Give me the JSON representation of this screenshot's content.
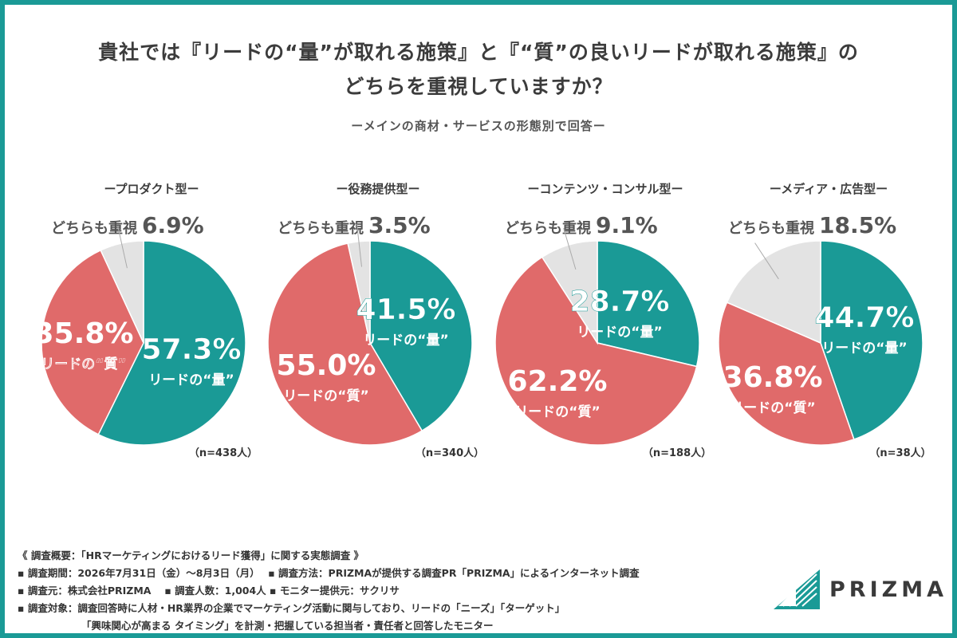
{
  "title_line1": "貴社では『リードの“量”が取れる施策』と『“質”の良いリードが取れる施策』の",
  "title_line2": "どちらを重視していますか？",
  "subtitle": "ーメインの商材・サービスの形態別で回答ー",
  "colors": {
    "quantity": "#1a9a96",
    "quality": "#e06a6a",
    "both": "#e3e3e3",
    "both_text": "#555555"
  },
  "chart_data": [
    {
      "type": "pie",
      "title": "ープロダクト型ー",
      "n_label": "（n=438人）",
      "series": [
        {
          "name": "リードの“量”",
          "value": 57.3,
          "label": "57.3%"
        },
        {
          "name": "リードの“質”",
          "value": 35.8,
          "label": "35.8%"
        },
        {
          "name": "どちらも重視",
          "value": 6.9,
          "label": "6.9%"
        }
      ]
    },
    {
      "type": "pie",
      "title": "ー役務提供型ー",
      "n_label": "（n=340人）",
      "series": [
        {
          "name": "リードの“量”",
          "value": 41.5,
          "label": "41.5%"
        },
        {
          "name": "リードの“質”",
          "value": 55.0,
          "label": "55.0%"
        },
        {
          "name": "どちらも重視",
          "value": 3.5,
          "label": "3.5%"
        }
      ]
    },
    {
      "type": "pie",
      "title": "ーコンテンツ・コンサル型ー",
      "n_label": "（n=188人）",
      "series": [
        {
          "name": "リードの“量”",
          "value": 28.7,
          "label": "28.7%"
        },
        {
          "name": "リードの“質”",
          "value": 62.2,
          "label": "62.2%"
        },
        {
          "name": "どちらも重視",
          "value": 9.1,
          "label": "9.1%"
        }
      ]
    },
    {
      "type": "pie",
      "title": "ーメディア・広告型ー",
      "n_label": "（n=38人）",
      "series": [
        {
          "name": "リードの“量”",
          "value": 44.7,
          "label": "44.7%"
        },
        {
          "name": "リードの“質”",
          "value": 36.8,
          "label": "36.8%"
        },
        {
          "name": "どちらも重視",
          "value": 18.5,
          "label": "18.5%"
        }
      ]
    }
  ],
  "footer": {
    "overview": "《 調査概要：「HRマーケティングにおけるリード獲得」に関する実態調査 》",
    "period": "▪ 調査期間：2026年7月31日（金）〜8月3日（月）",
    "method": "▪ 調査方法：PRIZMAが提供する調査PR「PRIZMA」によるインターネット調査",
    "source": "▪ 調査元：株式会社PRIZMA",
    "count": "▪ 調査人数：1,004人",
    "provider": "▪ モニター提供元：サクリサ",
    "target1": "▪ 調査対象：調査回答時に人材・HR業界の企業でマーケティング活動に関与しており、リードの「ニーズ」「ターゲット」",
    "target2": "「興味関心が高まる タイミング」を計測・把握している担当者・責任者と回答したモニター"
  },
  "logo": {
    "text": "PRIZMA"
  }
}
